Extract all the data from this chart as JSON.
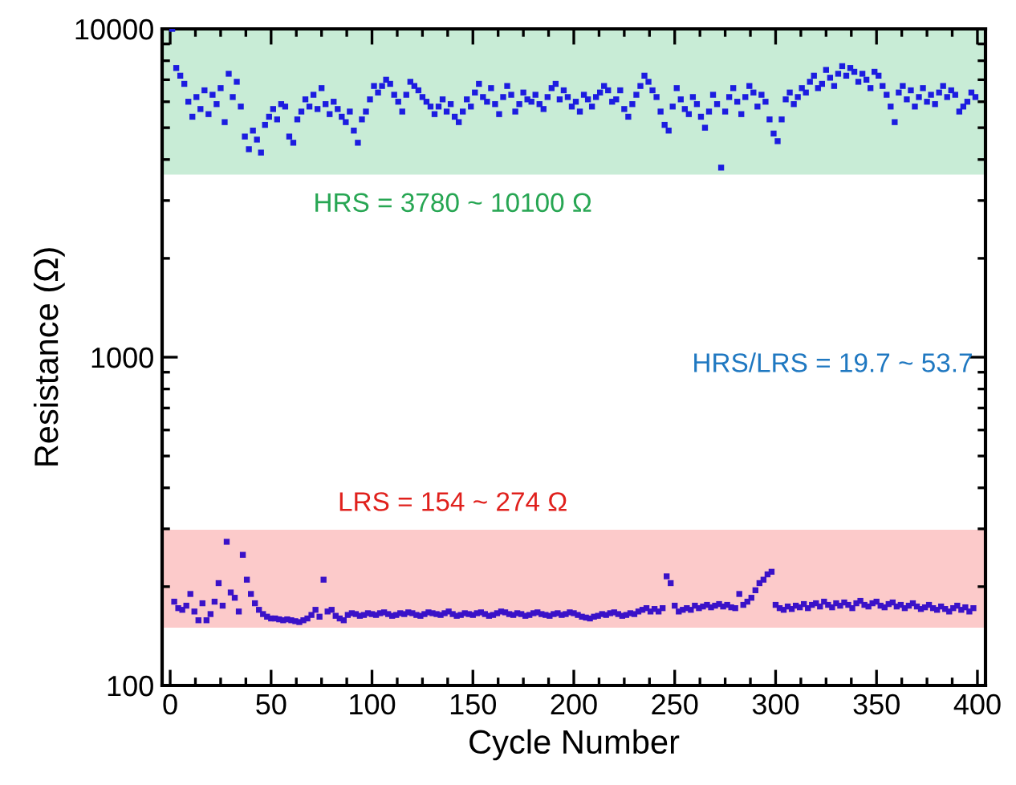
{
  "chart_data": {
    "type": "scatter",
    "xlabel": "Cycle Number",
    "ylabel": "Resistance (Ω)",
    "log": "y",
    "xlim": [
      -4,
      404
    ],
    "ylim": [
      100,
      10000
    ],
    "xticks": [
      0,
      50,
      100,
      150,
      200,
      250,
      300,
      350,
      400
    ],
    "yticks": [
      100,
      1000,
      10000
    ],
    "marker": "square",
    "grid": false,
    "legend": false,
    "bands": [
      {
        "axis": "y",
        "from": 3600,
        "to": 10100,
        "color": "#c8ecd6",
        "label": "HRS = 3780 ~ 10100 Ω"
      },
      {
        "axis": "y",
        "from": 150,
        "to": 298,
        "color": "#fccaca",
        "label": "LRS = 154 ~ 274 Ω"
      }
    ],
    "annotations": [
      "HRS/LRS = 19.7 ~ 53.7"
    ],
    "series": [
      {
        "color": "#1c1ce0",
        "x": [
          1,
          3,
          5,
          7,
          9,
          11,
          13,
          15,
          17,
          19,
          21,
          23,
          25,
          27,
          29,
          31,
          33,
          35,
          37,
          39,
          41,
          43,
          45,
          47,
          49,
          51,
          53,
          55,
          57,
          59,
          61,
          63,
          65,
          67,
          69,
          71,
          73,
          75,
          77,
          79,
          81,
          83,
          85,
          87,
          89,
          91,
          93,
          95,
          97,
          99,
          101,
          103,
          105,
          107,
          109,
          111,
          113,
          115,
          117,
          119,
          121,
          123,
          125,
          127,
          129,
          131,
          133,
          135,
          137,
          139,
          141,
          143,
          145,
          147,
          149,
          151,
          153,
          155,
          157,
          159,
          161,
          163,
          165,
          167,
          169,
          171,
          173,
          175,
          177,
          179,
          181,
          183,
          185,
          187,
          189,
          191,
          193,
          195,
          197,
          199,
          201,
          203,
          205,
          207,
          209,
          211,
          213,
          215,
          217,
          219,
          221,
          223,
          225,
          227,
          229,
          231,
          233,
          235,
          237,
          239,
          241,
          243,
          245,
          247,
          249,
          251,
          253,
          255,
          257,
          259,
          261,
          263,
          265,
          267,
          269,
          271,
          273,
          275,
          277,
          279,
          281,
          283,
          285,
          287,
          289,
          291,
          293,
          295,
          297,
          299,
          301,
          303,
          305,
          307,
          309,
          311,
          313,
          315,
          317,
          319,
          321,
          323,
          325,
          327,
          329,
          331,
          333,
          335,
          337,
          339,
          341,
          343,
          345,
          347,
          349,
          351,
          353,
          355,
          357,
          359,
          361,
          363,
          365,
          367,
          369,
          371,
          373,
          375,
          377,
          379,
          381,
          383,
          385,
          387,
          389,
          391,
          393,
          395,
          397,
          399
        ],
        "values": [
          10000,
          7600,
          7200,
          6800,
          6000,
          5400,
          6200,
          5700,
          6500,
          5500,
          6300,
          5900,
          6600,
          5200,
          7300,
          6200,
          6900,
          5800,
          4700,
          4300,
          4900,
          4600,
          4200,
          5100,
          5400,
          5700,
          5300,
          5900,
          5800,
          4700,
          4500,
          5300,
          5600,
          6100,
          5800,
          6300,
          5700,
          6600,
          5900,
          5500,
          6000,
          5700,
          5400,
          5200,
          5600,
          4900,
          4500,
          5300,
          5600,
          6100,
          6700,
          6400,
          6700,
          7000,
          6800,
          6300,
          6000,
          5600,
          6300,
          6900,
          6700,
          6500,
          6200,
          6000,
          5800,
          5500,
          5800,
          6100,
          5600,
          5900,
          5400,
          5200,
          5600,
          6100,
          5800,
          6400,
          6800,
          6200,
          6000,
          6600,
          5900,
          5500,
          6200,
          6700,
          6300,
          5600,
          5900,
          6400,
          6100,
          6000,
          6300,
          5900,
          5700,
          6200,
          6600,
          6800,
          6100,
          6500,
          6200,
          5800,
          6000,
          5600,
          6300,
          6100,
          5800,
          6200,
          6400,
          6700,
          6500,
          6000,
          6100,
          6500,
          5700,
          5400,
          5900,
          6300,
          6700,
          7200,
          6900,
          6500,
          6200,
          5600,
          5100,
          4900,
          5800,
          6600,
          6100,
          5700,
          5500,
          6200,
          5900,
          5400,
          5000,
          5600,
          6300,
          5900,
          3780,
          5600,
          6200,
          6600,
          6000,
          5500,
          6200,
          6700,
          6400,
          5800,
          6300,
          6000,
          5300,
          4800,
          4550,
          5300,
          6100,
          6400,
          5900,
          6200,
          6600,
          6400,
          6900,
          7200,
          6600,
          6800,
          7500,
          7100,
          6700,
          7300,
          7700,
          7200,
          7600,
          7400,
          6900,
          7300,
          7000,
          6600,
          7400,
          7200,
          6700,
          6300,
          5800,
          5200,
          6400,
          6700,
          6100,
          6500,
          5800,
          6200,
          6600,
          6000,
          6300,
          5900,
          6400,
          6700,
          6200,
          6500,
          6300,
          5600,
          5800,
          6000,
          6400,
          6200
        ]
      },
      {
        "color": "#3a12c8",
        "x": [
          2,
          4,
          6,
          8,
          10,
          12,
          14,
          16,
          18,
          20,
          22,
          24,
          26,
          28,
          30,
          32,
          34,
          36,
          38,
          40,
          42,
          44,
          46,
          48,
          50,
          52,
          54,
          56,
          58,
          60,
          62,
          64,
          66,
          68,
          70,
          72,
          74,
          76,
          78,
          80,
          82,
          84,
          86,
          88,
          90,
          92,
          94,
          96,
          98,
          100,
          102,
          104,
          106,
          108,
          110,
          112,
          114,
          116,
          118,
          120,
          122,
          124,
          126,
          128,
          130,
          132,
          134,
          136,
          138,
          140,
          142,
          144,
          146,
          148,
          150,
          152,
          154,
          156,
          158,
          160,
          162,
          164,
          166,
          168,
          170,
          172,
          174,
          176,
          178,
          180,
          182,
          184,
          186,
          188,
          190,
          192,
          194,
          196,
          198,
          200,
          202,
          204,
          206,
          208,
          210,
          212,
          214,
          216,
          218,
          220,
          222,
          224,
          226,
          228,
          230,
          232,
          234,
          236,
          238,
          240,
          242,
          244,
          246,
          248,
          250,
          252,
          254,
          256,
          258,
          260,
          262,
          264,
          266,
          268,
          270,
          272,
          274,
          276,
          278,
          280,
          282,
          284,
          286,
          288,
          290,
          292,
          294,
          296,
          298,
          300,
          302,
          304,
          306,
          308,
          310,
          312,
          314,
          316,
          318,
          320,
          322,
          324,
          326,
          328,
          330,
          332,
          334,
          336,
          338,
          340,
          342,
          344,
          346,
          348,
          350,
          352,
          354,
          356,
          358,
          360,
          362,
          364,
          366,
          368,
          370,
          372,
          374,
          376,
          378,
          380,
          382,
          384,
          386,
          388,
          390,
          392,
          394,
          396,
          398
        ],
        "values": [
          180,
          172,
          170,
          175,
          190,
          168,
          158,
          178,
          158,
          165,
          180,
          205,
          175,
          274,
          192,
          185,
          168,
          250,
          210,
          190,
          178,
          170,
          165,
          162,
          160,
          160,
          159,
          158,
          159,
          158,
          157,
          156,
          158,
          160,
          164,
          170,
          162,
          210,
          168,
          170,
          163,
          160,
          158,
          164,
          166,
          165,
          163,
          164,
          166,
          165,
          164,
          166,
          167,
          165,
          163,
          164,
          166,
          165,
          167,
          166,
          164,
          163,
          165,
          167,
          166,
          165,
          164,
          166,
          168,
          165,
          163,
          164,
          166,
          165,
          164,
          166,
          167,
          165,
          163,
          164,
          166,
          168,
          167,
          165,
          164,
          166,
          165,
          163,
          164,
          166,
          167,
          165,
          164,
          163,
          165,
          166,
          164,
          165,
          167,
          166,
          164,
          162,
          161,
          160,
          162,
          163,
          165,
          164,
          166,
          167,
          165,
          163,
          164,
          166,
          165,
          168,
          170,
          172,
          168,
          171,
          168,
          172,
          215,
          205,
          175,
          168,
          170,
          172,
          170,
          175,
          172,
          174,
          176,
          173,
          175,
          177,
          174,
          176,
          173,
          172,
          190,
          176,
          180,
          185,
          195,
          205,
          210,
          218,
          222,
          176,
          172,
          170,
          174,
          171,
          175,
          173,
          177,
          172,
          176,
          178,
          174,
          180,
          176,
          173,
          178,
          175,
          179,
          176,
          172,
          178,
          181,
          176,
          174,
          178,
          180,
          175,
          173,
          177,
          179,
          174,
          176,
          172,
          175,
          178,
          174,
          171,
          173,
          176,
          172,
          170,
          174,
          171,
          168,
          172,
          175,
          170,
          173,
          168,
          172
        ]
      }
    ]
  }
}
